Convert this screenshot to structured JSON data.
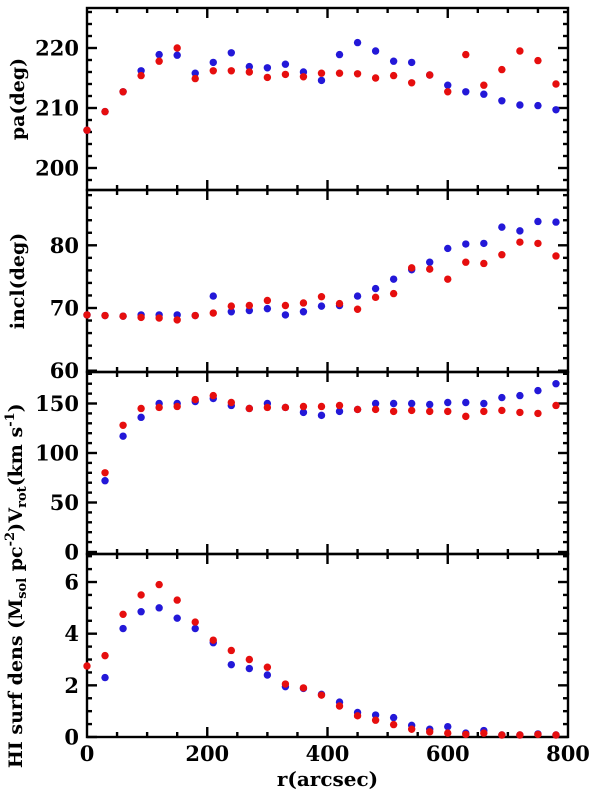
{
  "figure": {
    "xlabel": "r(arcsec)",
    "x_ticks": [
      0,
      200,
      400,
      600,
      800
    ],
    "x_tick_labels": [
      "0",
      "200",
      "400",
      "600",
      "800"
    ],
    "x_minor_step": 50,
    "xlim": [
      0,
      800
    ],
    "colors": {
      "red": "#e60e0e",
      "blue": "#2318d8",
      "axis": "#000000",
      "background": "#ffffff"
    }
  },
  "chart_data": [
    {
      "type": "scatter",
      "panel": "position-angle",
      "ylabel": "pa(deg)",
      "ylabel_parts": [
        {
          "t": "pa(deg)"
        }
      ],
      "ylim": [
        196.3,
        226.7
      ],
      "y_ticks": [
        200,
        210,
        220
      ],
      "y_minor_step": 2,
      "grid": false,
      "series": [
        {
          "name": "blue",
          "color": "#2318d8",
          "x": [
            0,
            30,
            60,
            90,
            120,
            150,
            180,
            210,
            240,
            270,
            300,
            330,
            360,
            390,
            420,
            450,
            480,
            510,
            540,
            570,
            600,
            630,
            660,
            690,
            720,
            750,
            780
          ],
          "y": [
            206.3,
            209.4,
            212.7,
            216.2,
            218.9,
            218.8,
            215.8,
            217.6,
            219.2,
            216.9,
            216.7,
            217.3,
            216.0,
            214.6,
            218.9,
            220.9,
            219.5,
            217.8,
            217.6,
            215.5,
            213.8,
            212.7,
            212.3,
            211.2,
            210.5,
            210.4,
            209.7
          ]
        },
        {
          "name": "red",
          "color": "#e60e0e",
          "x": [
            0,
            30,
            60,
            90,
            120,
            150,
            180,
            210,
            240,
            270,
            300,
            330,
            360,
            390,
            420,
            450,
            480,
            510,
            540,
            570,
            600,
            630,
            660,
            690,
            720,
            750,
            780
          ],
          "y": [
            206.3,
            209.4,
            212.7,
            215.4,
            217.8,
            220.0,
            214.9,
            216.2,
            216.2,
            216.0,
            215.1,
            215.6,
            215.2,
            215.8,
            215.8,
            215.7,
            215.0,
            215.4,
            214.2,
            215.5,
            212.7,
            218.9,
            213.8,
            216.4,
            219.5,
            217.9,
            214.0
          ]
        }
      ]
    },
    {
      "type": "scatter",
      "panel": "inclination",
      "ylabel": "incl(deg)",
      "ylabel_parts": [
        {
          "t": "incl(deg)"
        }
      ],
      "ylim": [
        59.8,
        88.8
      ],
      "y_ticks": [
        60,
        70,
        80
      ],
      "y_minor_step": 2,
      "grid": false,
      "series": [
        {
          "name": "blue",
          "color": "#2318d8",
          "x": [
            0,
            30,
            60,
            90,
            120,
            150,
            180,
            210,
            240,
            270,
            300,
            330,
            360,
            390,
            420,
            450,
            480,
            510,
            540,
            570,
            600,
            630,
            660,
            690,
            720,
            750,
            780
          ],
          "y": [
            68.9,
            68.8,
            68.7,
            68.9,
            68.9,
            68.9,
            68.8,
            71.9,
            69.4,
            69.6,
            69.9,
            68.9,
            69.4,
            70.3,
            70.4,
            71.9,
            73.1,
            74.6,
            76.1,
            77.3,
            79.5,
            80.2,
            80.3,
            82.9,
            82.3,
            83.8,
            83.7
          ]
        },
        {
          "name": "red",
          "color": "#e60e0e",
          "x": [
            0,
            30,
            60,
            90,
            120,
            150,
            180,
            210,
            240,
            270,
            300,
            330,
            360,
            390,
            420,
            450,
            480,
            510,
            540,
            570,
            600,
            630,
            660,
            690,
            720,
            750,
            780
          ],
          "y": [
            68.9,
            68.8,
            68.7,
            68.5,
            68.4,
            68.1,
            68.8,
            69.2,
            70.3,
            70.4,
            71.2,
            70.4,
            70.8,
            71.8,
            70.7,
            69.8,
            71.7,
            72.3,
            76.4,
            76.2,
            74.6,
            77.3,
            77.1,
            78.5,
            80.5,
            80.3,
            78.3
          ]
        }
      ]
    },
    {
      "type": "scatter",
      "panel": "rotation-velocity",
      "ylabel": "V_rot(km s^-1)",
      "ylabel_parts": [
        {
          "t": "V"
        },
        {
          "t": "rot",
          "m": "sub"
        },
        {
          "t": "(km s"
        },
        {
          "t": "-1",
          "m": "sup"
        },
        {
          "t": ")"
        }
      ],
      "ylim": [
        -2,
        181.8
      ],
      "y_ticks": [
        0,
        50,
        100,
        150
      ],
      "y_minor_step": 10,
      "grid": false,
      "series": [
        {
          "name": "blue",
          "color": "#2318d8",
          "x": [
            30,
            60,
            90,
            120,
            150,
            180,
            210,
            240,
            270,
            300,
            330,
            360,
            390,
            420,
            450,
            480,
            510,
            540,
            570,
            600,
            630,
            660,
            690,
            720,
            750,
            780
          ],
          "y": [
            72,
            117,
            136,
            150,
            150,
            152,
            155,
            148,
            145,
            150,
            146,
            141,
            138,
            142,
            144,
            150,
            150,
            150,
            149,
            151,
            151,
            150,
            156,
            158,
            163,
            170
          ]
        },
        {
          "name": "red",
          "color": "#e60e0e",
          "x": [
            30,
            60,
            90,
            120,
            150,
            180,
            210,
            240,
            270,
            300,
            330,
            360,
            390,
            420,
            450,
            480,
            510,
            540,
            570,
            600,
            630,
            660,
            690,
            720,
            750,
            780
          ],
          "y": [
            80,
            128,
            145,
            146,
            147,
            154,
            158,
            151,
            145,
            146,
            146,
            147,
            147,
            148,
            144,
            144,
            142,
            143,
            142,
            142,
            137,
            142,
            143,
            141,
            140,
            148
          ]
        }
      ]
    },
    {
      "type": "scatter",
      "panel": "hi-surface-density",
      "ylabel": "HI surf dens (M_sol pc^-2)",
      "ylabel_parts": [
        {
          "t": "HI surf dens (M"
        },
        {
          "t": "sol",
          "m": "sub"
        },
        {
          "t": " pc"
        },
        {
          "t": "-2",
          "m": "sup"
        },
        {
          "t": ")"
        }
      ],
      "ylim": [
        0,
        7.08
      ],
      "y_ticks": [
        0,
        2,
        4,
        6
      ],
      "y_minor_step": 0.5,
      "grid": false,
      "series": [
        {
          "name": "blue",
          "color": "#2318d8",
          "x": [
            30,
            60,
            90,
            120,
            150,
            180,
            210,
            240,
            270,
            300,
            330,
            360,
            390,
            420,
            450,
            480,
            510,
            540,
            570,
            600,
            630,
            660,
            690,
            720,
            750,
            780
          ],
          "y": [
            2.3,
            4.2,
            4.85,
            5.0,
            4.6,
            4.2,
            3.65,
            2.8,
            2.65,
            2.4,
            1.95,
            1.88,
            1.65,
            1.35,
            0.95,
            0.85,
            0.75,
            0.45,
            0.3,
            0.4,
            0.15,
            0.25,
            0.08,
            0.08,
            0.12,
            0.08
          ]
        },
        {
          "name": "red",
          "color": "#e60e0e",
          "x": [
            0,
            30,
            60,
            90,
            120,
            150,
            180,
            210,
            240,
            270,
            300,
            330,
            360,
            390,
            420,
            450,
            480,
            510,
            540,
            570,
            600,
            630,
            660,
            690,
            720,
            750,
            780
          ],
          "y": [
            2.75,
            3.15,
            4.75,
            5.5,
            5.9,
            5.3,
            4.45,
            3.75,
            3.35,
            3.0,
            2.7,
            2.05,
            1.9,
            1.62,
            1.2,
            0.82,
            0.65,
            0.48,
            0.3,
            0.2,
            0.15,
            0.1,
            0.15,
            0.05,
            0.05,
            0.1,
            0.05
          ]
        }
      ]
    }
  ]
}
